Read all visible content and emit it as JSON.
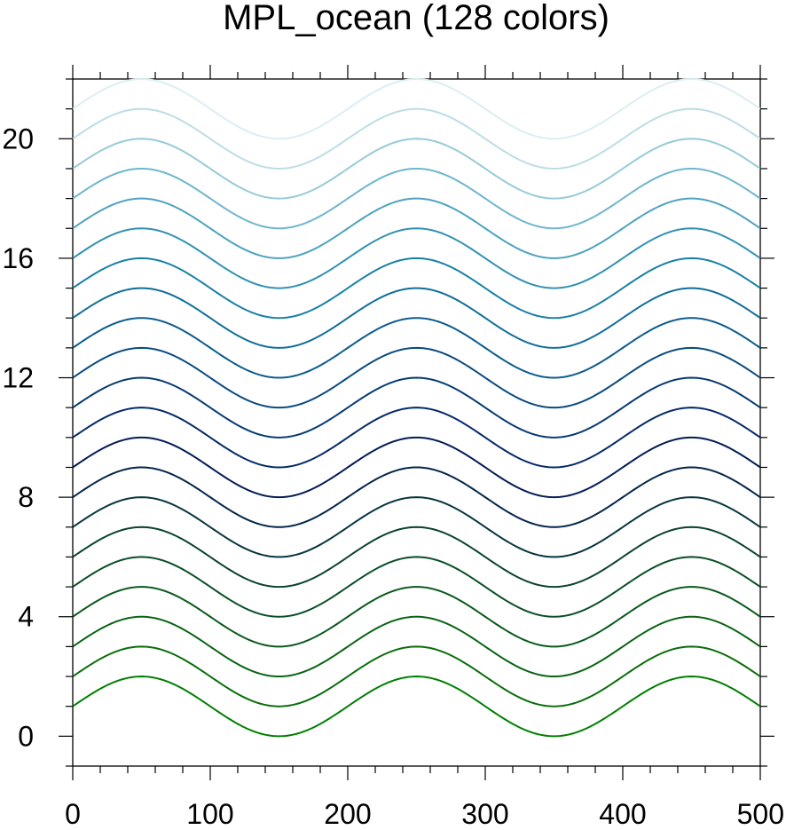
{
  "chart_data": {
    "type": "line",
    "title": "MPL_ocean (128 colors)",
    "xlabel": "",
    "ylabel": "",
    "xlim": [
      0,
      500
    ],
    "ylim": [
      -1,
      22
    ],
    "x_ticks": [
      0,
      100,
      200,
      300,
      400,
      500
    ],
    "x_tick_labels": [
      "0",
      "100",
      "200",
      "300",
      "400",
      "500"
    ],
    "y_ticks": [
      0,
      4,
      8,
      12,
      16,
      20
    ],
    "y_tick_labels": [
      "0",
      "4",
      "8",
      "12",
      "16",
      "20"
    ],
    "x_minor_step": 20,
    "y_minor_step": 1,
    "grid": false,
    "legend": "none",
    "curve": {
      "form": "y = offset + sin(2*pi*(x - 0)/200)",
      "period": 200,
      "amplitude": 1,
      "x_start": 0,
      "x_end": 500
    },
    "series": [
      {
        "offset": 1,
        "color": "#007f00"
      },
      {
        "offset": 2,
        "color": "#0a6e0a"
      },
      {
        "offset": 3,
        "color": "#0a6414"
      },
      {
        "offset": 4,
        "color": "#0b5a1d"
      },
      {
        "offset": 5,
        "color": "#0a4e28"
      },
      {
        "offset": 6,
        "color": "#0a4233"
      },
      {
        "offset": 7,
        "color": "#07353f"
      },
      {
        "offset": 8,
        "color": "#05264b"
      },
      {
        "offset": 9,
        "color": "#041b55"
      },
      {
        "offset": 10,
        "color": "#052a68"
      },
      {
        "offset": 11,
        "color": "#063a74"
      },
      {
        "offset": 12,
        "color": "#0a4b80"
      },
      {
        "offset": 13,
        "color": "#0d5c8d"
      },
      {
        "offset": 14,
        "color": "#106e99"
      },
      {
        "offset": 15,
        "color": "#1980a5"
      },
      {
        "offset": 16,
        "color": "#3191b2"
      },
      {
        "offset": 17,
        "color": "#4fa3bf"
      },
      {
        "offset": 18,
        "color": "#6fb6cc"
      },
      {
        "offset": 19,
        "color": "#97cad9"
      },
      {
        "offset": 20,
        "color": "#bcdde6"
      },
      {
        "offset": 21,
        "color": "#dbeef2"
      }
    ]
  }
}
